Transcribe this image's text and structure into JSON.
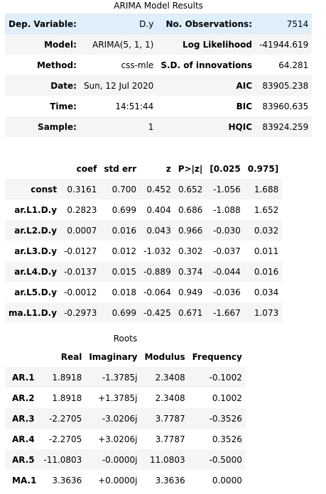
{
  "summary": {
    "caption": "ARIMA Model Results",
    "rows": [
      {
        "l1": "Dep. Variable:",
        "v1": "D.y",
        "l2": "No. Observations:",
        "v2": "7514"
      },
      {
        "l1": "Model:",
        "v1": "ARIMA(5, 1, 1)",
        "l2": "Log Likelihood",
        "v2": "-41944.619"
      },
      {
        "l1": "Method:",
        "v1": "css-mle",
        "l2": "S.D. of innovations",
        "v2": "64.281"
      },
      {
        "l1": "Date:",
        "v1": "Sun, 12 Jul 2020",
        "l2": "AIC",
        "v2": "83905.238"
      },
      {
        "l1": "Time:",
        "v1": "14:51:44",
        "l2": "BIC",
        "v2": "83960.635"
      },
      {
        "l1": "Sample:",
        "v1": "1",
        "l2": "HQIC",
        "v2": "83924.259"
      }
    ]
  },
  "coef": {
    "headers": [
      "coef",
      "std err",
      "z",
      "P>|z|",
      "[0.025",
      "0.975]"
    ],
    "rows": [
      {
        "name": "const",
        "vals": [
          "0.3161",
          "0.700",
          "0.452",
          "0.652",
          "-1.056",
          "1.688"
        ]
      },
      {
        "name": "ar.L1.D.y",
        "vals": [
          "0.2823",
          "0.699",
          "0.404",
          "0.686",
          "-1.088",
          "1.652"
        ]
      },
      {
        "name": "ar.L2.D.y",
        "vals": [
          "0.0007",
          "0.016",
          "0.043",
          "0.966",
          "-0.030",
          "0.032"
        ]
      },
      {
        "name": "ar.L3.D.y",
        "vals": [
          "-0.0127",
          "0.012",
          "-1.032",
          "0.302",
          "-0.037",
          "0.011"
        ]
      },
      {
        "name": "ar.L4.D.y",
        "vals": [
          "-0.0137",
          "0.015",
          "-0.889",
          "0.374",
          "-0.044",
          "0.016"
        ]
      },
      {
        "name": "ar.L5.D.y",
        "vals": [
          "-0.0012",
          "0.018",
          "-0.064",
          "0.949",
          "-0.036",
          "0.034"
        ]
      },
      {
        "name": "ma.L1.D.y",
        "vals": [
          "-0.2973",
          "0.699",
          "-0.425",
          "0.671",
          "-1.667",
          "1.073"
        ]
      }
    ]
  },
  "roots": {
    "caption": "Roots",
    "headers": [
      "Real",
      "Imaginary",
      "Modulus",
      "Frequency"
    ],
    "rows": [
      {
        "name": "AR.1",
        "vals": [
          "1.8918",
          "-1.3785j",
          "2.3408",
          "-0.1002"
        ]
      },
      {
        "name": "AR.2",
        "vals": [
          "1.8918",
          "+1.3785j",
          "2.3408",
          "0.1002"
        ]
      },
      {
        "name": "AR.3",
        "vals": [
          "-2.2705",
          "-3.0206j",
          "3.7787",
          "-0.3526"
        ]
      },
      {
        "name": "AR.4",
        "vals": [
          "-2.2705",
          "+3.0206j",
          "3.7787",
          "0.3526"
        ]
      },
      {
        "name": "AR.5",
        "vals": [
          "-11.0803",
          "-0.0000j",
          "11.0803",
          "-0.5000"
        ]
      },
      {
        "name": "MA.1",
        "vals": [
          "3.3636",
          "+0.0000j",
          "3.3636",
          "0.0000"
        ]
      }
    ]
  }
}
